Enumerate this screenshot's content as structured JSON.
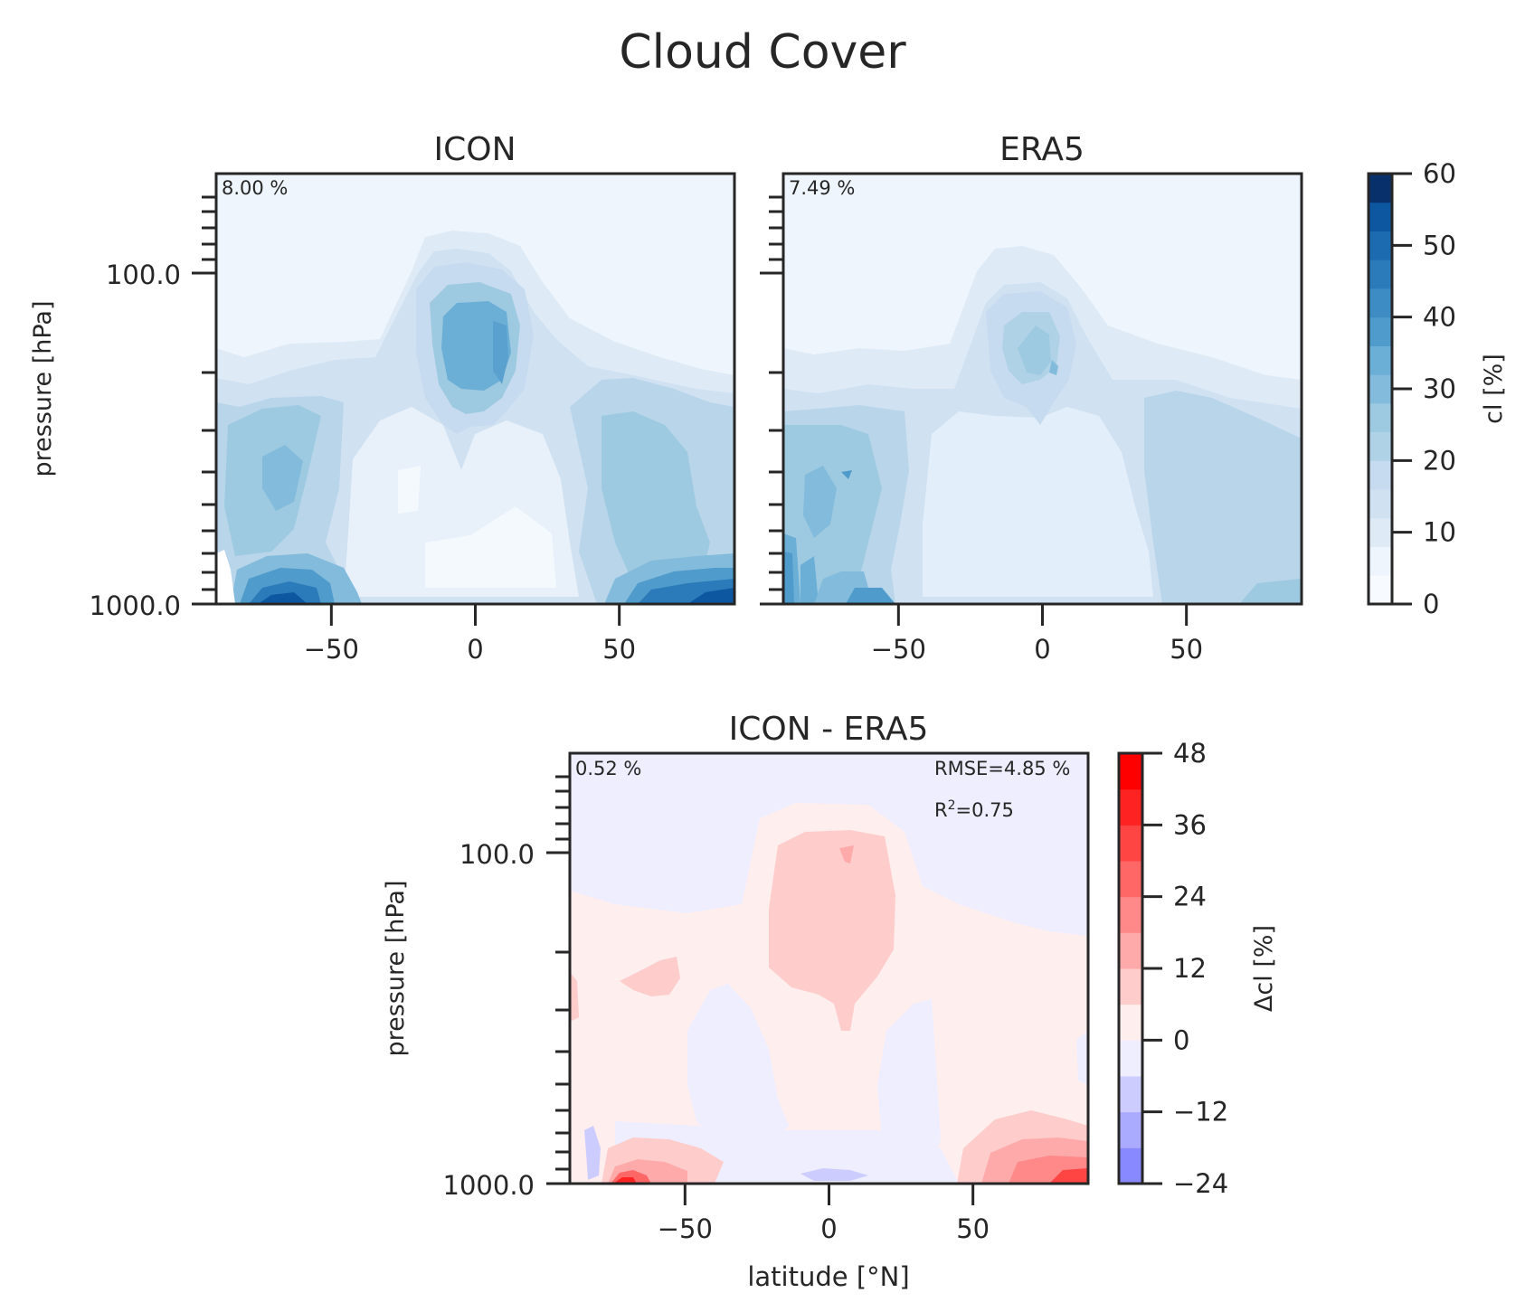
{
  "figure": {
    "title": "Cloud Cover"
  },
  "colors": {
    "blues": [
      "#f7fbff",
      "#eef5fc",
      "#deebf7",
      "#d0e1f2",
      "#c6dbef",
      "#b0d2e7",
      "#9ecae1",
      "#82bbdb",
      "#6baed6",
      "#4f9bcb",
      "#3d8dc4",
      "#2b7bba",
      "#1c6aaf",
      "#0d57a1",
      "#08306b"
    ],
    "diff": [
      "#8888ff",
      "#aaaaff",
      "#ccccff",
      "#eeeeff",
      "#ffeeee",
      "#ffcccc",
      "#ffaaaa",
      "#ff8888",
      "#ff6666",
      "#ff4444",
      "#ff2222",
      "#ff0000"
    ]
  },
  "chart_data": [
    {
      "type": "heatmap",
      "title": "ICON",
      "xlabel": "",
      "ylabel": "pressure [hPa]",
      "xlim": [
        -90,
        90
      ],
      "ylim": [
        1000,
        10
      ],
      "yscale": "log",
      "xticks": [
        -50,
        0,
        50
      ],
      "xtick_labels": [
        "−50",
        "0",
        "50"
      ],
      "ytick_labels": [
        "100.0",
        "1000.0"
      ],
      "annotation": "8.00 %",
      "colorbar": {
        "label": "cl [%]",
        "range": [
          0,
          60
        ],
        "tick_labels": [
          "0",
          "10",
          "20",
          "30",
          "40",
          "50",
          "60"
        ]
      }
    },
    {
      "type": "heatmap",
      "title": "ERA5",
      "xlabel": "",
      "ylabel": "",
      "xlim": [
        -90,
        90
      ],
      "ylim": [
        1000,
        10
      ],
      "yscale": "log",
      "xticks": [
        -50,
        0,
        50
      ],
      "xtick_labels": [
        "−50",
        "0",
        "50"
      ],
      "annotation": "7.49 %"
    },
    {
      "type": "heatmap",
      "title": "ICON - ERA5",
      "xlabel": "latitude [°N]",
      "ylabel": "pressure [hPa]",
      "xlim": [
        -90,
        90
      ],
      "ylim": [
        1000,
        10
      ],
      "yscale": "log",
      "xticks": [
        -50,
        0,
        50
      ],
      "xtick_labels": [
        "−50",
        "0",
        "50"
      ],
      "ytick_labels": [
        "100.0",
        "1000.0"
      ],
      "annotation": "0.52 %",
      "stats": {
        "rmse": "RMSE=4.85 %",
        "r2_prefix": "R",
        "r2_sup": "2",
        "r2_value": "=0.75"
      },
      "colorbar": {
        "label": "Δcl [%]",
        "range": [
          -24,
          48
        ],
        "tick_labels": [
          "−24",
          "−12",
          "0",
          "12",
          "24",
          "36",
          "48"
        ]
      }
    }
  ]
}
